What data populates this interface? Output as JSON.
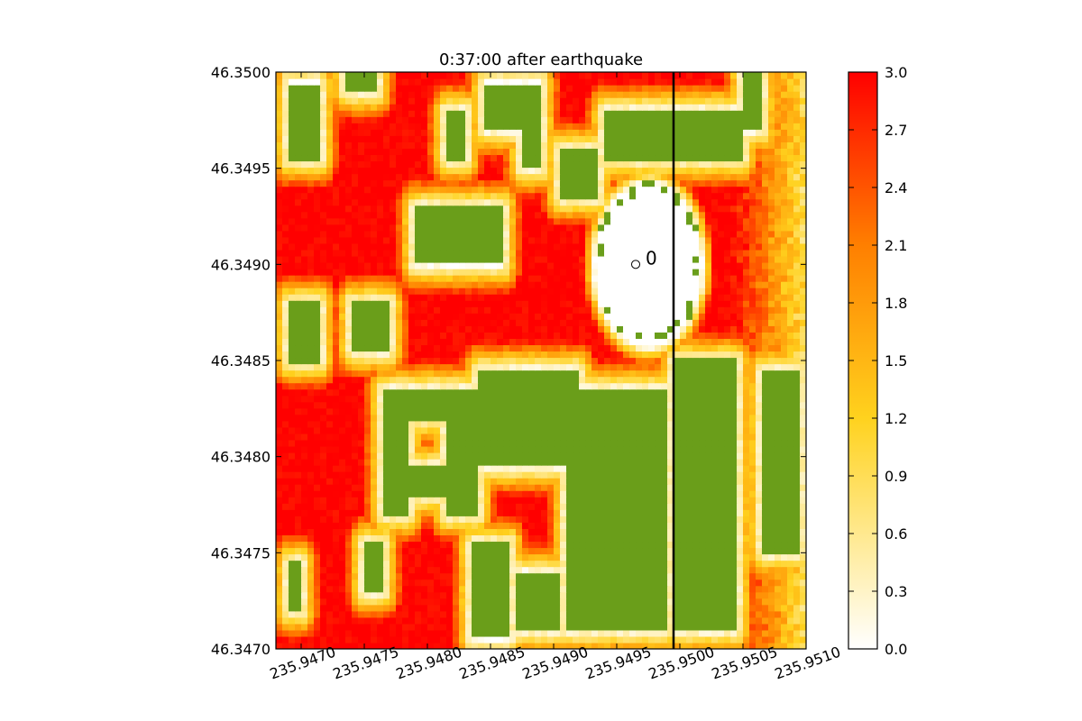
{
  "chart_data": {
    "type": "heatmap",
    "title": "0:37:00 after earthquake",
    "xlabel": "",
    "ylabel": "",
    "xlim": [
      235.9468,
      235.951
    ],
    "ylim": [
      46.347,
      46.35
    ],
    "x_ticks": [
      235.947,
      235.9475,
      235.948,
      235.9485,
      235.949,
      235.9495,
      235.95,
      235.9505,
      235.951
    ],
    "x_tick_labels": [
      "235.9470",
      "235.9475",
      "235.9480",
      "235.9485",
      "235.9490",
      "235.9495",
      "235.9500",
      "235.9505",
      "235.9510"
    ],
    "y_ticks": [
      46.347,
      46.3475,
      46.348,
      46.3485,
      46.349,
      46.3495,
      46.35
    ],
    "y_tick_labels": [
      "46.3470",
      "46.3475",
      "46.3480",
      "46.3485",
      "46.3490",
      "46.3495",
      "46.3500"
    ],
    "colorbar": {
      "min": 0.0,
      "max": 3.0,
      "ticks": [
        0.0,
        0.3,
        0.6,
        0.9,
        1.2,
        1.5,
        1.8,
        2.1,
        2.4,
        2.7,
        3.0
      ],
      "tick_labels": [
        "0.0",
        "0.3",
        "0.6",
        "0.9",
        "1.2",
        "1.5",
        "1.8",
        "2.1",
        "2.4",
        "2.7",
        "3.0"
      ],
      "colors": [
        "#ffffff",
        "#ffd21e",
        "#ff7f00",
        "#ff0000"
      ]
    },
    "masked_color": "#6a9e1a",
    "grid": false,
    "vertical_line": {
      "x": 235.94995,
      "color": "#000000"
    },
    "marker": {
      "x": 235.94975,
      "y": 46.349,
      "label": "0"
    },
    "regions": {
      "dry_circle": {
        "center": [
          235.94975,
          46.349
        ],
        "radius_x": 0.000425,
        "radius_y": 0.000425,
        "note": "value 0 inside"
      },
      "land_blocks": [
        {
          "x": [
            235.9469,
            235.94715
          ],
          "y": [
            46.34955,
            46.34995
          ]
        },
        {
          "x": [
            235.94735,
            235.9476
          ],
          "y": [
            46.3499,
            46.35
          ]
        },
        {
          "x": [
            235.94815,
            235.9483
          ],
          "y": [
            46.34955,
            46.3498
          ]
        },
        {
          "x": [
            235.94845,
            235.9489
          ],
          "y": [
            46.3497,
            46.34995
          ]
        },
        {
          "x": [
            235.94875,
            235.9489
          ],
          "y": [
            46.3495,
            46.3497
          ]
        },
        {
          "x": [
            235.9479,
            235.9486
          ],
          "y": [
            46.349,
            46.3493
          ]
        },
        {
          "x": [
            235.94905,
            235.94935
          ],
          "y": [
            46.34935,
            46.3496
          ]
        },
        {
          "x": [
            235.9494,
            235.9505
          ],
          "y": [
            46.34955,
            46.3498
          ]
        },
        {
          "x": [
            235.9505,
            235.95065
          ],
          "y": [
            46.3497,
            46.35
          ]
        },
        {
          "x": [
            235.9474,
            235.9477
          ],
          "y": [
            46.34855,
            46.3488
          ]
        },
        {
          "x": [
            235.9469,
            235.94715
          ],
          "y": [
            46.3485,
            46.3488
          ]
        },
        {
          "x": [
            235.94765,
            235.94835
          ],
          "y": [
            46.3482,
            46.34835
          ]
        },
        {
          "x": [
            235.94765,
            235.94785
          ],
          "y": [
            46.3477,
            46.3482
          ]
        },
        {
          "x": [
            235.94785,
            235.9483
          ],
          "y": [
            46.3478,
            46.34795
          ]
        },
        {
          "x": [
            235.94815,
            235.9484
          ],
          "y": [
            46.3477,
            46.34835
          ]
        },
        {
          "x": [
            235.9484,
            235.9492
          ],
          "y": [
            46.34795,
            46.34845
          ]
        },
        {
          "x": [
            235.9491,
            235.9499
          ],
          "y": [
            46.3471,
            46.34835
          ]
        },
        {
          "x": [
            235.94995,
            235.95045
          ],
          "y": [
            46.3471,
            46.3485
          ]
        },
        {
          "x": [
            235.95065,
            235.95095
          ],
          "y": [
            46.3475,
            46.34845
          ]
        },
        {
          "x": [
            235.9475,
            235.94765
          ],
          "y": [
            46.3473,
            46.34755
          ]
        },
        {
          "x": [
            235.94835,
            235.94865
          ],
          "y": [
            46.34705,
            46.34755
          ]
        },
        {
          "x": [
            235.9487,
            235.94905
          ],
          "y": [
            46.3471,
            46.3474
          ]
        },
        {
          "x": [
            235.9469,
            235.947
          ],
          "y": [
            46.3472,
            46.34745
          ]
        }
      ]
    }
  }
}
